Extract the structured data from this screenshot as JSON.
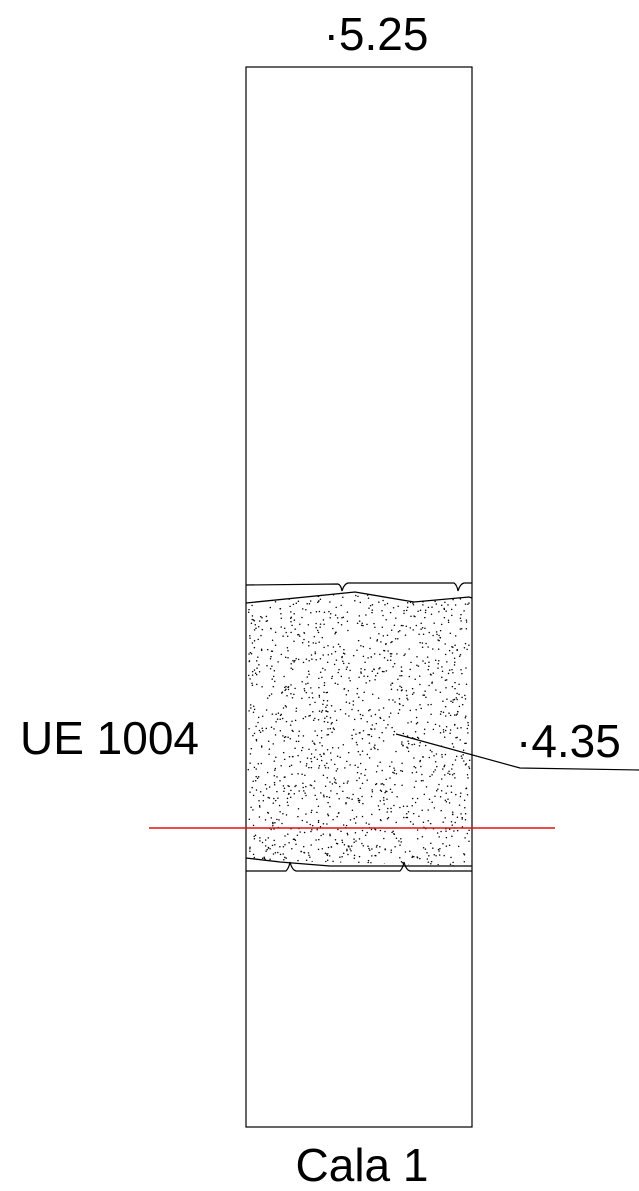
{
  "labels": {
    "top_elevation": "·5.25",
    "unit": "UE 1004",
    "side_elevation": "·4.35",
    "caption": "Cala 1"
  },
  "colors": {
    "stroke": "#000000",
    "datum_line": "#e01010",
    "background": "#ffffff"
  }
}
